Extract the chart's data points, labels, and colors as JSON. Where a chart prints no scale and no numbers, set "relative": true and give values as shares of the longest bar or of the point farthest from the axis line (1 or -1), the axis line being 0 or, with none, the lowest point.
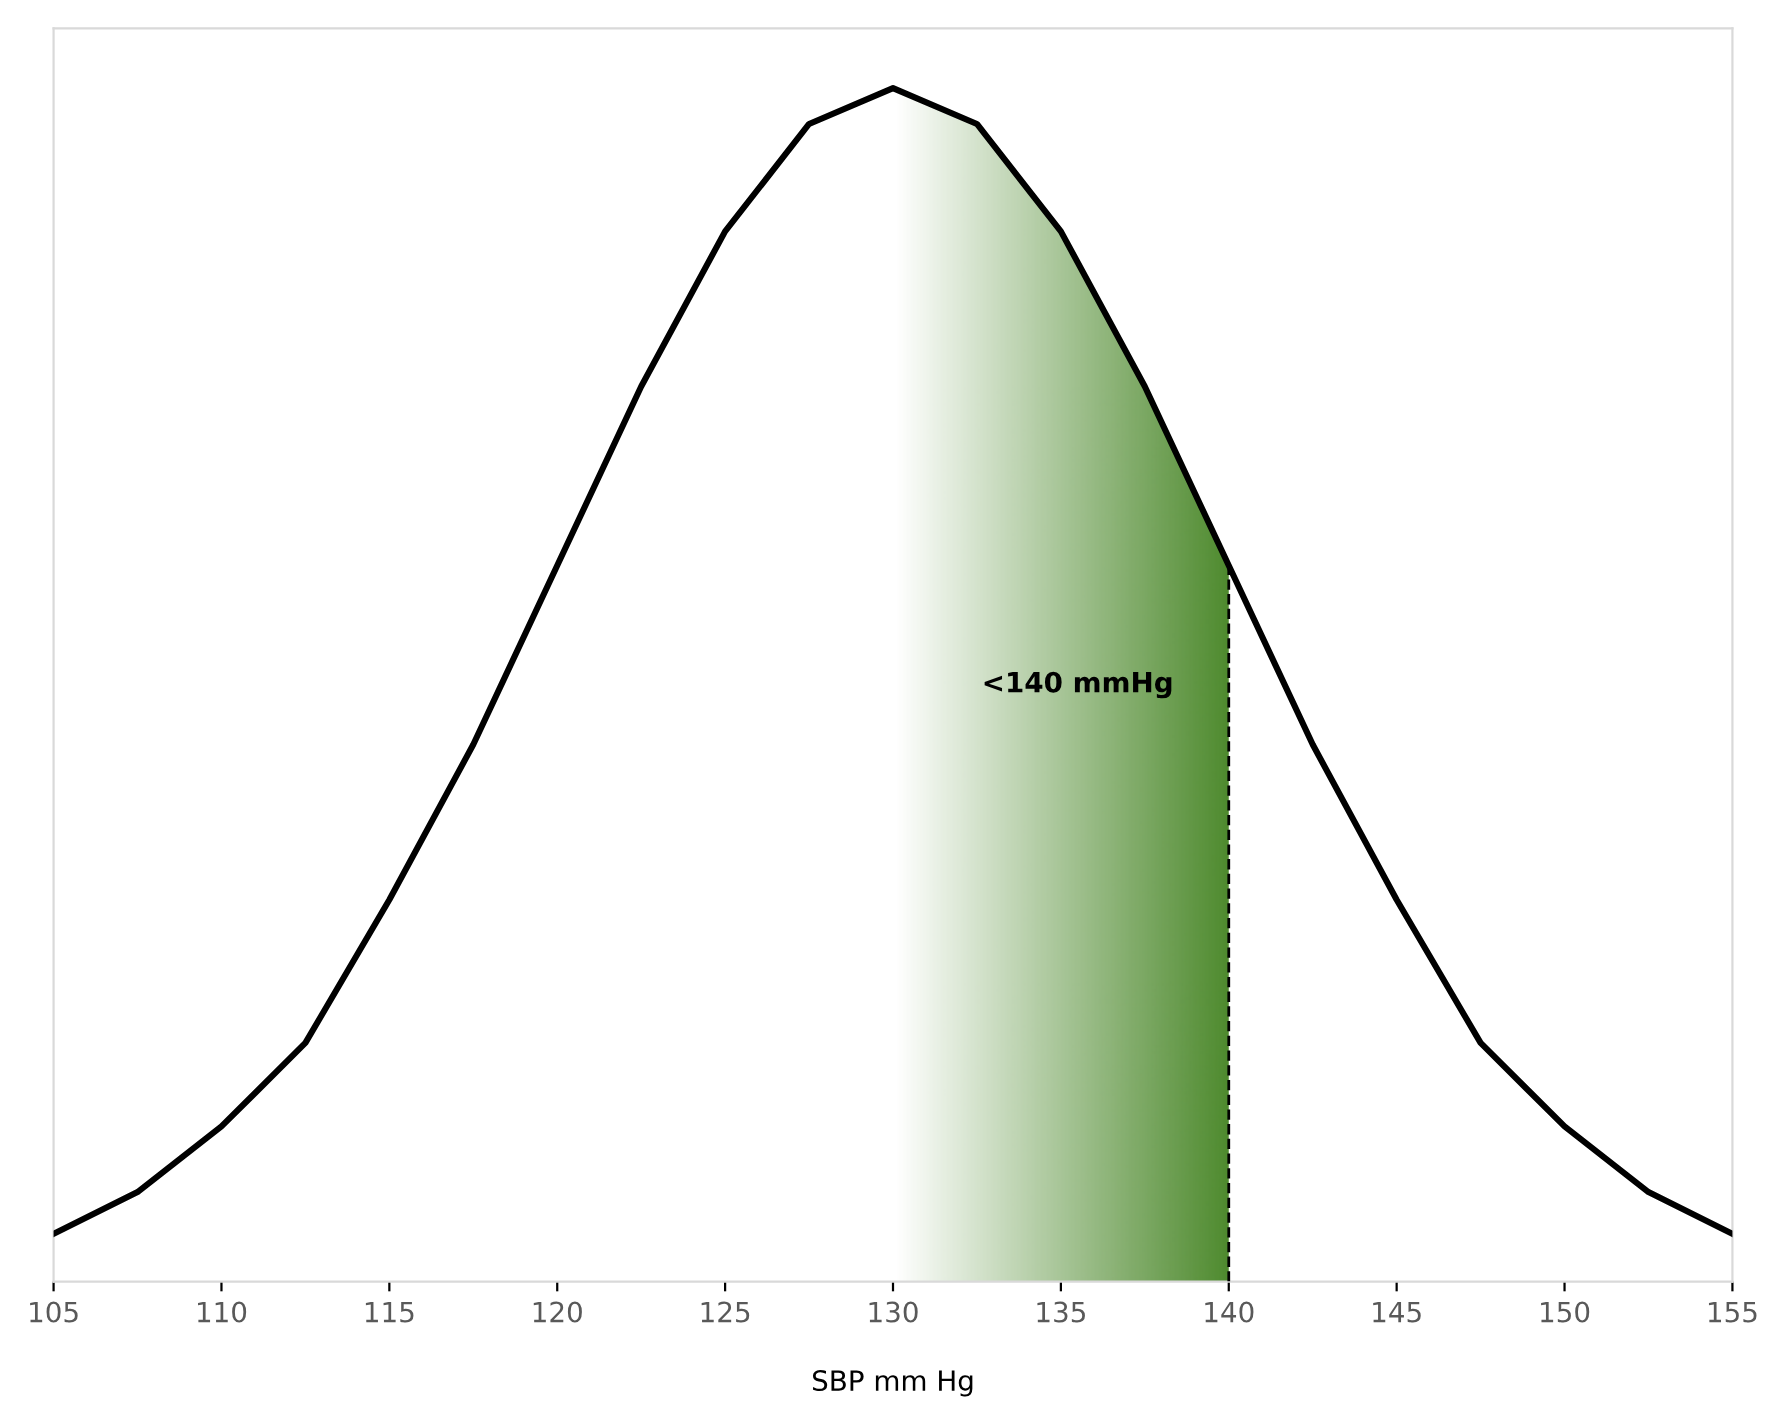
{
  "chart_data": {
    "type": "line",
    "xlabel": "SBP mm Hg",
    "relative": true,
    "x": [
      105,
      107.5,
      110,
      112.5,
      115,
      117.5,
      120,
      122.5,
      125,
      127.5,
      130,
      132.5,
      135,
      137.5,
      140,
      142.5,
      145,
      147.5,
      150,
      152.5,
      155
    ],
    "series": [
      {
        "color": "#000000",
        "values": [
          0.04,
          0.075,
          0.13,
          0.2,
          0.32,
          0.45,
          0.6,
          0.75,
          0.88,
          0.97,
          1.0,
          0.97,
          0.88,
          0.75,
          0.6,
          0.45,
          0.32,
          0.2,
          0.13,
          0.075,
          0.04
        ]
      }
    ],
    "xlim": [
      105,
      155
    ],
    "xticks": [
      105,
      110,
      115,
      120,
      125,
      130,
      135,
      140,
      145,
      150,
      155
    ],
    "bands": [
      {
        "axis": "x",
        "from": 130,
        "to": 140,
        "label": "<140 mmHg",
        "color": "#4e8a2e"
      }
    ],
    "ref_lines": [
      {
        "axis": "x",
        "value": 140,
        "line_style": "dashed",
        "color": "#000000"
      }
    ],
    "grid": false,
    "legend": false,
    "marker": "none",
    "line_style": "solid"
  }
}
